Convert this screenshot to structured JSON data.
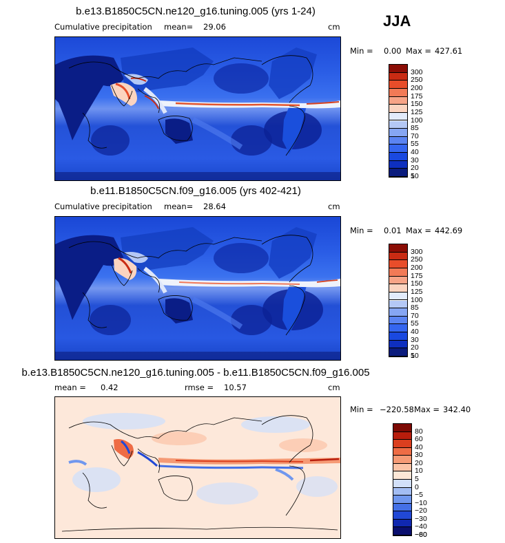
{
  "season": "JJA",
  "panels": [
    {
      "title": "b.e13.B1850C5CN.ne120_g16.tuning.005 (yrs 1-24)",
      "variable": "Cumulative precipitation",
      "mean_label": "mean=",
      "mean_value": "29.06",
      "units": "cm",
      "min_label": "Min =",
      "min_value": "0.00",
      "max_label": "Max =",
      "max_value": "427.61",
      "legend_colors": [
        "#0b1c7d",
        "#0e2fbf",
        "#1a49e0",
        "#3566f0",
        "#5b84f2",
        "#86a6f3",
        "#b4c8f6",
        "#e2ebfb",
        "#fbd4c0",
        "#f7a487",
        "#f27a56",
        "#e84d2a",
        "#c92b13",
        "#8b0d05"
      ],
      "legend_labels": [
        "5",
        "10",
        "20",
        "30",
        "40",
        "55",
        "70",
        "85",
        "100",
        "125",
        "150",
        "175",
        "200",
        "250",
        "300"
      ]
    },
    {
      "title": "b.e11.B1850C5CN.f09_g16.005 (yrs 402-421)",
      "variable": "Cumulative precipitation",
      "mean_label": "mean=",
      "mean_value": "28.64",
      "units": "cm",
      "min_label": "Min =",
      "min_value": "0.01",
      "max_label": "Max =",
      "max_value": "442.69",
      "legend_colors": [
        "#0b1c7d",
        "#0e2fbf",
        "#1a49e0",
        "#3566f0",
        "#5b84f2",
        "#86a6f3",
        "#b4c8f6",
        "#e2ebfb",
        "#fbd4c0",
        "#f7a487",
        "#f27a56",
        "#e84d2a",
        "#c92b13",
        "#8b0d05"
      ],
      "legend_labels": [
        "5",
        "10",
        "20",
        "30",
        "40",
        "55",
        "70",
        "85",
        "100",
        "125",
        "150",
        "175",
        "200",
        "250",
        "300"
      ]
    },
    {
      "title": "b.e13.B1850C5CN.ne120_g16.tuning.005 - b.e11.B1850C5CN.f09_g16.005",
      "mean_label": "mean =",
      "mean_value": "0.42",
      "rmse_label": "rmse =",
      "rmse_value": "10.57",
      "units": "cm",
      "min_label": "Min =",
      "min_value": "−220.58",
      "max_label": "Max =",
      "max_value": "342.40",
      "legend_colors": [
        "#0a0f6e",
        "#1028b0",
        "#2148d6",
        "#4470e6",
        "#7097ee",
        "#a3bdf3",
        "#d2e0f9",
        "#fde7d6",
        "#fbc3a6",
        "#f59a75",
        "#ee6c45",
        "#db3f1f",
        "#b81d0c",
        "#7d0a04"
      ],
      "legend_labels": [
        "−80",
        "−60",
        "−40",
        "−30",
        "−20",
        "−10",
        "−5",
        "0",
        "5",
        "10",
        "20",
        "30",
        "40",
        "60",
        "80"
      ]
    }
  ],
  "colors": {
    "ocean_deep": "#0d2fa8",
    "ocean_mid": "#1f52e0",
    "land_dry": "#0a1e8a",
    "itcz": "#f6f1ee",
    "itcz_core": "#e3542c",
    "diff_background": "#fde8da"
  }
}
